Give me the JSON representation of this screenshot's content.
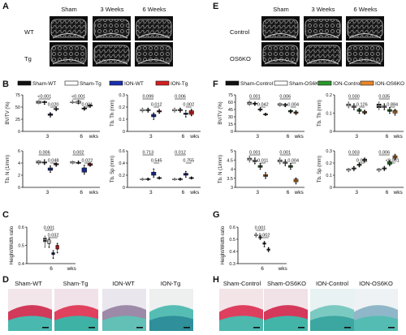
{
  "panels": {
    "A": {
      "label": "A",
      "columns": [
        "Sham",
        "3 Weeks",
        "6 Weeks"
      ],
      "rows": [
        "WT",
        "Tg"
      ]
    },
    "E": {
      "label": "E",
      "columns": [
        "Sham",
        "3 Weeks",
        "6 Weeks"
      ],
      "rows": [
        "Control",
        "OS6KO"
      ]
    },
    "B": {
      "label": "B",
      "legend": [
        "Sham-WT",
        "Sham-Tg",
        "ION-WT",
        "ION-Tg"
      ],
      "colors": [
        "#111111",
        "#ffffff",
        "#1a2fb0",
        "#d62020"
      ]
    },
    "F": {
      "label": "F",
      "legend": [
        "Sham-Control",
        "Sham-OS6KO",
        "ION-Control",
        "ION-OS6KO"
      ],
      "colors": [
        "#111111",
        "#ffffff",
        "#2a9a2a",
        "#e8862a"
      ]
    },
    "C": {
      "label": "C"
    },
    "G": {
      "label": "G"
    },
    "D": {
      "label": "D",
      "captions": [
        "Sham-WT",
        "Sham-Tg",
        "ION-WT",
        "ION-Tg"
      ]
    },
    "H": {
      "label": "H",
      "captions": [
        "Sham-Control",
        "Sham-OS6KO",
        "ION-Control",
        "ION-OS6KO"
      ]
    }
  },
  "chart_data": [
    {
      "id": "B-bvtv",
      "type": "box",
      "ylabel": "BV/TV (%)",
      "yticks": [
        0,
        25,
        50,
        75
      ],
      "ylim": [
        0,
        75
      ],
      "categories": [
        "3",
        "6"
      ],
      "xunit": "wks",
      "series": [
        {
          "values": [
            [
              58,
              62,
              57,
              63
            ],
            [
              60,
              63,
              58,
              61
            ]
          ]
        },
        {
          "values": [
            [
              59,
              61,
              56,
              62
            ],
            [
              58,
              62,
              57,
              63
            ]
          ]
        },
        {
          "values": [
            [
              33,
              38,
              30,
              36
            ],
            [
              44,
              50,
              46,
              48
            ]
          ]
        },
        {
          "values": [
            [
              45,
              50,
              47,
              43
            ],
            [
              52,
              50,
              55,
              54
            ]
          ]
        }
      ],
      "pvalues": [
        "<0.001",
        "0.020",
        "<0.001",
        "0.001"
      ]
    },
    {
      "id": "B-tbth",
      "type": "box",
      "ylabel": "Tb. Th (mm)",
      "yticks": [
        0.0,
        0.1,
        0.2,
        0.3
      ],
      "ylim": [
        0,
        0.3
      ],
      "categories": [
        "3",
        "6"
      ],
      "xunit": "wks",
      "series": [
        {
          "values": [
            [
              0.17,
              0.18,
              0.16,
              0.19
            ],
            [
              0.17,
              0.18,
              0.19,
              0.16
            ]
          ]
        },
        {
          "values": [
            [
              0.17,
              0.18,
              0.16,
              0.19
            ],
            [
              0.18,
              0.17,
              0.19,
              0.16
            ]
          ]
        },
        {
          "values": [
            [
              0.12,
              0.15,
              0.1,
              0.14
            ],
            [
              0.14,
              0.17,
              0.12,
              0.15
            ]
          ]
        },
        {
          "values": [
            [
              0.16,
              0.17,
              0.15,
              0.18
            ],
            [
              0.14,
              0.17,
              0.13,
              0.18
            ]
          ]
        }
      ],
      "pvalues": [
        "0.099",
        "0.012",
        "0.006",
        "0.002"
      ]
    },
    {
      "id": "B-tbn",
      "type": "box",
      "ylabel": "Tb. N (1/mm)",
      "yticks": [
        0,
        2,
        4,
        6
      ],
      "ylim": [
        0,
        6
      ],
      "categories": [
        "3",
        "6"
      ],
      "xunit": "wks",
      "series": [
        {
          "values": [
            [
              4.0,
              4.3,
              3.8,
              4.4
            ],
            [
              4.0,
              4.3,
              3.9,
              4.2
            ]
          ]
        },
        {
          "values": [
            [
              4.0,
              4.2,
              3.8,
              4.5
            ],
            [
              3.9,
              4.3,
              4.1,
              4.0
            ]
          ]
        },
        {
          "values": [
            [
              2.8,
              3.5,
              2.5,
              3.2
            ],
            [
              2.5,
              3.6,
              2.2,
              3.2
            ]
          ]
        },
        {
          "values": [
            [
              3.7,
              3.9,
              3.5,
              4.0
            ],
            [
              3.6,
              3.9,
              3.5,
              4.0
            ]
          ]
        }
      ],
      "pvalues": [
        "0.006",
        "0.048",
        "0.002",
        "0.022"
      ]
    },
    {
      "id": "B-tbsp",
      "type": "box",
      "ylabel": "Tb. Sp (mm)",
      "yticks": [
        0.0,
        0.2,
        0.4,
        0.6
      ],
      "ylim": [
        0,
        0.6
      ],
      "categories": [
        "3",
        "6"
      ],
      "xunit": "wks",
      "series": [
        {
          "values": [
            [
              0.13,
              0.14,
              0.12,
              0.15
            ],
            [
              0.13,
              0.15,
              0.12,
              0.14
            ]
          ]
        },
        {
          "values": [
            [
              0.13,
              0.15,
              0.12,
              0.14
            ],
            [
              0.14,
              0.13,
              0.15,
              0.12
            ]
          ]
        },
        {
          "values": [
            [
              0.2,
              0.3,
              0.17,
              0.25
            ],
            [
              0.2,
              0.26,
              0.17,
              0.23
            ]
          ]
        },
        {
          "values": [
            [
              0.15,
              0.17,
              0.14,
              0.16
            ],
            [
              0.15,
              0.17,
              0.14,
              0.16
            ]
          ]
        }
      ],
      "pvalues": [
        "0.713",
        "0.545",
        "0.012",
        "0.755"
      ]
    },
    {
      "id": "C-hw",
      "type": "box",
      "ylabel": "Height/Width ratio",
      "yticks": [
        0.4,
        0.5,
        0.6
      ],
      "ylim": [
        0.4,
        0.6
      ],
      "categories": [
        "6"
      ],
      "xunit": "wks",
      "series": [
        {
          "values": [
            [
              0.52,
              0.55,
              0.49,
              0.54
            ]
          ]
        },
        {
          "values": [
            [
              0.51,
              0.53,
              0.49,
              0.54
            ]
          ]
        },
        {
          "values": [
            [
              0.45,
              0.47,
              0.43,
              0.46
            ]
          ]
        },
        {
          "values": [
            [
              0.48,
              0.51,
              0.46,
              0.5
            ]
          ]
        }
      ],
      "pvalues": [
        "0.001",
        "0.032"
      ]
    },
    {
      "id": "F-bvtv",
      "type": "box",
      "ylabel": "BV/TV (%)",
      "yticks": [
        0,
        15,
        30,
        45,
        60,
        75
      ],
      "ylim": [
        0,
        75
      ],
      "categories": [
        "3",
        "6"
      ],
      "xunit": "wks",
      "series": [
        {
          "values": [
            [
              56,
              60,
              54,
              62
            ],
            [
              54,
              57,
              52,
              58
            ]
          ]
        },
        {
          "values": [
            [
              56,
              58,
              54,
              60
            ],
            [
              53,
              56,
              51,
              57
            ]
          ]
        },
        {
          "values": [
            [
              44,
              48,
              42,
              46
            ],
            [
              40,
              44,
              38,
              43
            ]
          ]
        },
        {
          "values": [
            [
              34,
              36,
              33,
              37
            ],
            [
              37,
              42,
              35,
              40
            ]
          ]
        }
      ],
      "pvalues": [
        "0.001",
        "0.042",
        "0.006",
        "0.004"
      ]
    },
    {
      "id": "F-tbth",
      "type": "box",
      "ylabel": "Tb. Th (mm)",
      "yticks": [
        0.0,
        0.1,
        0.2
      ],
      "ylim": [
        0,
        0.2
      ],
      "categories": [
        "3",
        "6"
      ],
      "xunit": "wks",
      "series": [
        {
          "values": [
            [
              0.14,
              0.15,
              0.13,
              0.16
            ],
            [
              0.13,
              0.15,
              0.12,
              0.16
            ]
          ]
        },
        {
          "values": [
            [
              0.13,
              0.14,
              0.12,
              0.15
            ],
            [
              0.13,
              0.14,
              0.12,
              0.15
            ]
          ]
        },
        {
          "values": [
            [
              0.11,
              0.12,
              0.1,
              0.125
            ],
            [
              0.11,
              0.13,
              0.1,
              0.12
            ]
          ]
        },
        {
          "values": [
            [
              0.1,
              0.11,
              0.095,
              0.115
            ],
            [
              0.1,
              0.115,
              0.09,
              0.12
            ]
          ]
        }
      ],
      "pvalues": [
        "0.030",
        "0.126",
        "0.035",
        "0.884"
      ]
    },
    {
      "id": "F-tbn",
      "type": "box",
      "ylabel": "Tb. N (1/mm)",
      "yticks": [
        3.0,
        3.5,
        4.0,
        4.5,
        5.0
      ],
      "ylim": [
        3.0,
        5.0
      ],
      "categories": [
        "3",
        "6"
      ],
      "xunit": "wks",
      "series": [
        {
          "values": [
            [
              4.5,
              4.6,
              4.4,
              4.7
            ],
            [
              4.4,
              4.5,
              4.3,
              4.6
            ]
          ]
        },
        {
          "values": [
            [
              4.4,
              4.5,
              4.3,
              4.6
            ],
            [
              4.3,
              4.4,
              4.2,
              4.5
            ]
          ]
        },
        {
          "values": [
            [
              4.1,
              4.3,
              4.0,
              4.2
            ],
            [
              4.1,
              4.2,
              4.0,
              4.3
            ]
          ]
        },
        {
          "values": [
            [
              3.6,
              3.8,
              3.5,
              3.7
            ],
            [
              3.3,
              3.5,
              3.2,
              3.45
            ]
          ]
        }
      ],
      "pvalues": [
        "0.001",
        "0.011",
        "0.001",
        "0.004"
      ]
    },
    {
      "id": "F-tbsp",
      "type": "box",
      "ylabel": "Tb. Sp (mm)",
      "yticks": [
        0.0,
        0.1,
        0.2,
        0.3
      ],
      "ylim": [
        0,
        0.3
      ],
      "categories": [
        "3",
        "6"
      ],
      "xunit": "wks",
      "series": [
        {
          "values": [
            [
              0.14,
              0.15,
              0.13,
              0.155
            ],
            [
              0.14,
              0.15,
              0.13,
              0.155
            ]
          ]
        },
        {
          "values": [
            [
              0.15,
              0.16,
              0.14,
              0.17
            ],
            [
              0.15,
              0.16,
              0.14,
              0.17
            ]
          ]
        },
        {
          "values": [
            [
              0.18,
              0.19,
              0.17,
              0.2
            ],
            [
              0.19,
              0.21,
              0.18,
              0.22
            ]
          ]
        },
        {
          "values": [
            [
              0.22,
              0.23,
              0.21,
              0.24
            ],
            [
              0.24,
              0.26,
              0.23,
              0.27
            ]
          ]
        }
      ],
      "pvalues": [
        "0.003",
        "0.081",
        "0.006",
        "<0.001"
      ]
    },
    {
      "id": "G-hw",
      "type": "box",
      "ylabel": "Height/Width ratio",
      "yticks": [
        0.3,
        0.4,
        0.5,
        0.6
      ],
      "ylim": [
        0.3,
        0.6
      ],
      "categories": [
        "6"
      ],
      "xunit": "wks",
      "series": [
        {
          "values": [
            [
              0.53,
              0.54,
              0.52,
              0.55
            ]
          ]
        },
        {
          "values": [
            [
              0.51,
              0.52,
              0.5,
              0.53
            ]
          ]
        },
        {
          "values": [
            [
              0.46,
              0.48,
              0.44,
              0.47
            ]
          ]
        },
        {
          "values": [
            [
              0.41,
              0.43,
              0.4,
              0.42
            ]
          ]
        }
      ],
      "pvalues": [
        "0.001",
        "0.002"
      ]
    }
  ]
}
